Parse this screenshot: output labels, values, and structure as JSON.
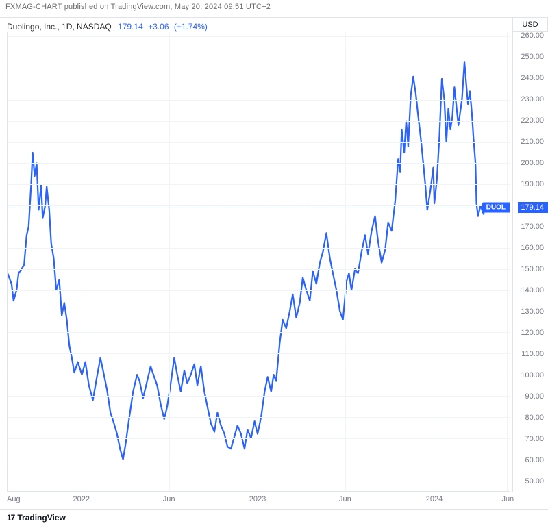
{
  "publish": {
    "text": "FXMAG-CHART published on TradingView.com, May 20, 2024 09:51 UTC+2"
  },
  "header": {
    "symbol_desc": "Duolingo, Inc., 1D, NASDAQ",
    "last_price": "179.14",
    "change_abs": "+3.06",
    "change_pct": "(+1.74%)"
  },
  "currency": "USD",
  "ticker_tag": "DUOL",
  "price_tag": "179.14",
  "footer": {
    "logo": "17",
    "brand": "TradingView"
  },
  "chart": {
    "type": "line",
    "line_color": "#2962ff",
    "line_width": 1.6,
    "background_color": "#ffffff",
    "grid_color": "#f0f3f8",
    "border_color": "#e0e3eb",
    "text_color": "#787b86",
    "font_size_axis": 11,
    "ylim": [
      45,
      262
    ],
    "y_ticks": [
      50,
      60,
      70,
      80,
      90,
      100,
      110,
      120,
      130,
      140,
      150,
      160,
      170,
      180,
      190,
      200,
      210,
      220,
      230,
      240,
      250,
      260
    ],
    "y_tick_labels": [
      "50.00",
      "60.00",
      "70.00",
      "80.00",
      "90.00",
      "100.00",
      "110.00",
      "120.00",
      "130.00",
      "140.00",
      "150.00",
      "160.00",
      "170.00",
      "180.00",
      "190.00",
      "200.00",
      "210.00",
      "220.00",
      "230.00",
      "240.00",
      "250.00",
      "260.00"
    ],
    "x_ticks": [
      {
        "pos": 0.0,
        "label": "Aug"
      },
      {
        "pos": 0.148,
        "label": "2022"
      },
      {
        "pos": 0.322,
        "label": "Jun"
      },
      {
        "pos": 0.498,
        "label": "2023"
      },
      {
        "pos": 0.672,
        "label": "Jun"
      },
      {
        "pos": 0.849,
        "label": "2024"
      },
      {
        "pos": 0.995,
        "label": "Jun"
      }
    ],
    "last_value": 179.14,
    "series": [
      [
        0.0,
        148
      ],
      [
        0.008,
        143
      ],
      [
        0.012,
        135
      ],
      [
        0.018,
        140
      ],
      [
        0.022,
        148
      ],
      [
        0.028,
        150
      ],
      [
        0.033,
        152
      ],
      [
        0.038,
        166
      ],
      [
        0.042,
        170
      ],
      [
        0.047,
        190
      ],
      [
        0.05,
        205
      ],
      [
        0.054,
        194
      ],
      [
        0.058,
        200
      ],
      [
        0.062,
        178
      ],
      [
        0.067,
        190
      ],
      [
        0.07,
        174
      ],
      [
        0.075,
        180
      ],
      [
        0.078,
        189
      ],
      [
        0.083,
        178
      ],
      [
        0.087,
        162
      ],
      [
        0.092,
        155
      ],
      [
        0.097,
        140
      ],
      [
        0.103,
        145
      ],
      [
        0.108,
        128
      ],
      [
        0.113,
        134
      ],
      [
        0.118,
        126
      ],
      [
        0.123,
        114
      ],
      [
        0.128,
        108
      ],
      [
        0.133,
        101
      ],
      [
        0.14,
        106
      ],
      [
        0.148,
        100
      ],
      [
        0.155,
        106
      ],
      [
        0.162,
        95
      ],
      [
        0.17,
        88
      ],
      [
        0.178,
        99
      ],
      [
        0.185,
        108
      ],
      [
        0.192,
        100
      ],
      [
        0.198,
        93
      ],
      [
        0.205,
        82
      ],
      [
        0.212,
        77
      ],
      [
        0.218,
        72
      ],
      [
        0.224,
        65
      ],
      [
        0.23,
        60
      ],
      [
        0.235,
        67
      ],
      [
        0.242,
        79
      ],
      [
        0.25,
        92
      ],
      [
        0.258,
        100
      ],
      [
        0.263,
        97
      ],
      [
        0.27,
        89
      ],
      [
        0.278,
        97
      ],
      [
        0.285,
        104
      ],
      [
        0.292,
        99
      ],
      [
        0.298,
        95
      ],
      [
        0.305,
        86
      ],
      [
        0.312,
        79
      ],
      [
        0.318,
        85
      ],
      [
        0.325,
        96
      ],
      [
        0.332,
        108
      ],
      [
        0.338,
        100
      ],
      [
        0.345,
        92
      ],
      [
        0.352,
        102
      ],
      [
        0.358,
        96
      ],
      [
        0.365,
        100
      ],
      [
        0.372,
        105
      ],
      [
        0.378,
        95
      ],
      [
        0.385,
        104
      ],
      [
        0.392,
        92
      ],
      [
        0.398,
        85
      ],
      [
        0.405,
        77
      ],
      [
        0.412,
        73
      ],
      [
        0.418,
        82
      ],
      [
        0.425,
        76
      ],
      [
        0.432,
        72
      ],
      [
        0.438,
        66
      ],
      [
        0.445,
        65
      ],
      [
        0.452,
        71
      ],
      [
        0.458,
        76
      ],
      [
        0.465,
        72
      ],
      [
        0.472,
        65
      ],
      [
        0.478,
        74
      ],
      [
        0.485,
        70
      ],
      [
        0.492,
        78
      ],
      [
        0.498,
        72
      ],
      [
        0.505,
        80
      ],
      [
        0.512,
        92
      ],
      [
        0.518,
        99
      ],
      [
        0.525,
        92
      ],
      [
        0.53,
        100
      ],
      [
        0.535,
        97
      ],
      [
        0.542,
        115
      ],
      [
        0.548,
        126
      ],
      [
        0.555,
        122
      ],
      [
        0.562,
        130
      ],
      [
        0.568,
        138
      ],
      [
        0.575,
        127
      ],
      [
        0.582,
        134
      ],
      [
        0.588,
        146
      ],
      [
        0.595,
        140
      ],
      [
        0.602,
        135
      ],
      [
        0.608,
        149
      ],
      [
        0.615,
        143
      ],
      [
        0.622,
        153
      ],
      [
        0.628,
        158
      ],
      [
        0.635,
        167
      ],
      [
        0.642,
        155
      ],
      [
        0.648,
        148
      ],
      [
        0.655,
        140
      ],
      [
        0.662,
        130
      ],
      [
        0.668,
        126
      ],
      [
        0.675,
        144
      ],
      [
        0.68,
        148
      ],
      [
        0.685,
        140
      ],
      [
        0.692,
        150
      ],
      [
        0.698,
        148
      ],
      [
        0.705,
        158
      ],
      [
        0.712,
        166
      ],
      [
        0.718,
        157
      ],
      [
        0.725,
        168
      ],
      [
        0.732,
        175
      ],
      [
        0.738,
        163
      ],
      [
        0.745,
        153
      ],
      [
        0.752,
        159
      ],
      [
        0.758,
        172
      ],
      [
        0.765,
        168
      ],
      [
        0.772,
        182
      ],
      [
        0.778,
        202
      ],
      [
        0.782,
        196
      ],
      [
        0.785,
        216
      ],
      [
        0.79,
        205
      ],
      [
        0.794,
        220
      ],
      [
        0.798,
        208
      ],
      [
        0.803,
        232
      ],
      [
        0.808,
        241
      ],
      [
        0.813,
        233
      ],
      [
        0.818,
        222
      ],
      [
        0.823,
        212
      ],
      [
        0.828,
        200
      ],
      [
        0.832,
        190
      ],
      [
        0.836,
        178
      ],
      [
        0.842,
        187
      ],
      [
        0.848,
        198
      ],
      [
        0.85,
        181
      ],
      [
        0.855,
        192
      ],
      [
        0.86,
        212
      ],
      [
        0.865,
        240
      ],
      [
        0.87,
        230
      ],
      [
        0.874,
        210
      ],
      [
        0.878,
        226
      ],
      [
        0.882,
        216
      ],
      [
        0.886,
        222
      ],
      [
        0.89,
        236
      ],
      [
        0.894,
        227
      ],
      [
        0.898,
        218
      ],
      [
        0.902,
        225
      ],
      [
        0.905,
        230
      ],
      [
        0.91,
        248
      ],
      [
        0.913,
        239
      ],
      [
        0.917,
        228
      ],
      [
        0.921,
        234
      ],
      [
        0.925,
        223
      ],
      [
        0.928,
        212
      ],
      [
        0.932,
        200
      ],
      [
        0.934,
        181
      ],
      [
        0.937,
        175
      ],
      [
        0.942,
        180
      ],
      [
        0.948,
        176
      ],
      [
        0.952,
        180
      ],
      [
        0.955,
        179.14
      ]
    ]
  }
}
